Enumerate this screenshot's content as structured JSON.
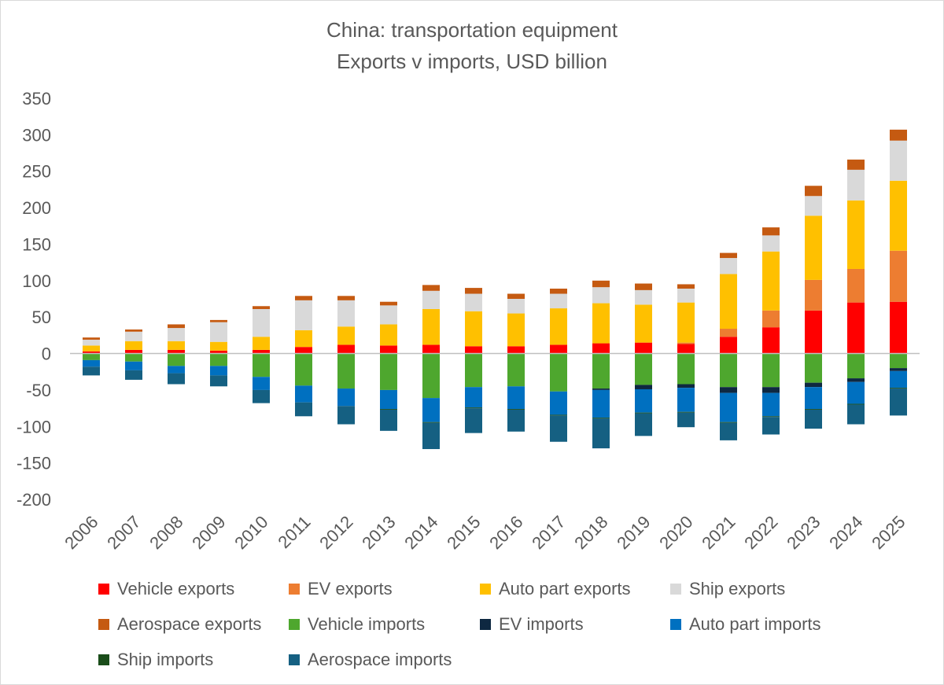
{
  "chart_data": {
    "type": "bar",
    "stacked": true,
    "title": "China: transportation equipment",
    "subtitle": "Exports v imports, USD billion",
    "xlabel": "",
    "ylabel": "",
    "ylim": [
      -200,
      350
    ],
    "yticks": [
      350,
      300,
      250,
      200,
      150,
      100,
      50,
      0,
      -50,
      -100,
      -150,
      -200
    ],
    "grid": false,
    "legend_position": "bottom",
    "categories": [
      "2006",
      "2007",
      "2008",
      "2009",
      "2010",
      "2011",
      "2012",
      "2013",
      "2014",
      "2015",
      "2016",
      "2017",
      "2018",
      "2019",
      "2020",
      "2021",
      "2022",
      "2023",
      "2024",
      "2025"
    ],
    "series": [
      {
        "name": "Vehicle exports",
        "color": "#ff0000",
        "values": [
          3,
          5,
          5,
          4,
          5,
          9,
          12,
          11,
          12,
          10,
          10,
          12,
          14,
          15,
          13,
          23,
          36,
          59,
          70,
          71
        ]
      },
      {
        "name": "EV exports",
        "color": "#ed7d31",
        "values": [
          0,
          0,
          0,
          0,
          0,
          0,
          0,
          0,
          0,
          0,
          0,
          0,
          0,
          0,
          2,
          11,
          23,
          42,
          46,
          70
        ]
      },
      {
        "name": "Auto part exports",
        "color": "#ffc000",
        "values": [
          8,
          12,
          12,
          12,
          18,
          23,
          25,
          29,
          49,
          48,
          45,
          50,
          55,
          52,
          55,
          75,
          81,
          88,
          94,
          96
        ]
      },
      {
        "name": "Ship exports",
        "color": "#d9d9d9",
        "values": [
          8,
          13,
          18,
          27,
          38,
          41,
          36,
          26,
          25,
          24,
          20,
          20,
          22,
          20,
          19,
          22,
          22,
          27,
          42,
          55
        ]
      },
      {
        "name": "Aerospace exports",
        "color": "#c55a11",
        "values": [
          3,
          3,
          5,
          3,
          4,
          6,
          6,
          5,
          8,
          8,
          7,
          7,
          9,
          9,
          6,
          7,
          11,
          14,
          14,
          15
        ]
      },
      {
        "name": "Vehicle imports",
        "color": "#4ea72e",
        "values": [
          -9,
          -11,
          -17,
          -17,
          -32,
          -44,
          -48,
          -50,
          -61,
          -46,
          -45,
          -52,
          -48,
          -43,
          -42,
          -46,
          -46,
          -40,
          -34,
          -20
        ]
      },
      {
        "name": "EV imports",
        "color": "#0e2841",
        "values": [
          0,
          0,
          0,
          0,
          0,
          0,
          0,
          0,
          0,
          0,
          0,
          0,
          -2,
          -6,
          -5,
          -8,
          -8,
          -6,
          -5,
          -4
        ]
      },
      {
        "name": "Auto part imports",
        "color": "#0070c0",
        "values": [
          -9,
          -12,
          -10,
          -13,
          -18,
          -23,
          -24,
          -26,
          -33,
          -28,
          -31,
          -32,
          -38,
          -32,
          -33,
          -40,
          -32,
          -30,
          -30,
          -23
        ]
      },
      {
        "name": "Ship imports",
        "color": "#1a4d1a",
        "values": [
          0,
          0,
          0,
          0,
          0,
          0,
          0,
          -1,
          -1,
          -1,
          -1,
          -1,
          -1,
          -1,
          -1,
          -1,
          -1,
          -1,
          -1,
          -1
        ]
      },
      {
        "name": "Aerospace imports",
        "color": "#156082",
        "values": [
          -12,
          -13,
          -15,
          -15,
          -18,
          -19,
          -25,
          -29,
          -36,
          -34,
          -30,
          -36,
          -41,
          -31,
          -20,
          -24,
          -24,
          -26,
          -27,
          -37
        ]
      }
    ]
  }
}
